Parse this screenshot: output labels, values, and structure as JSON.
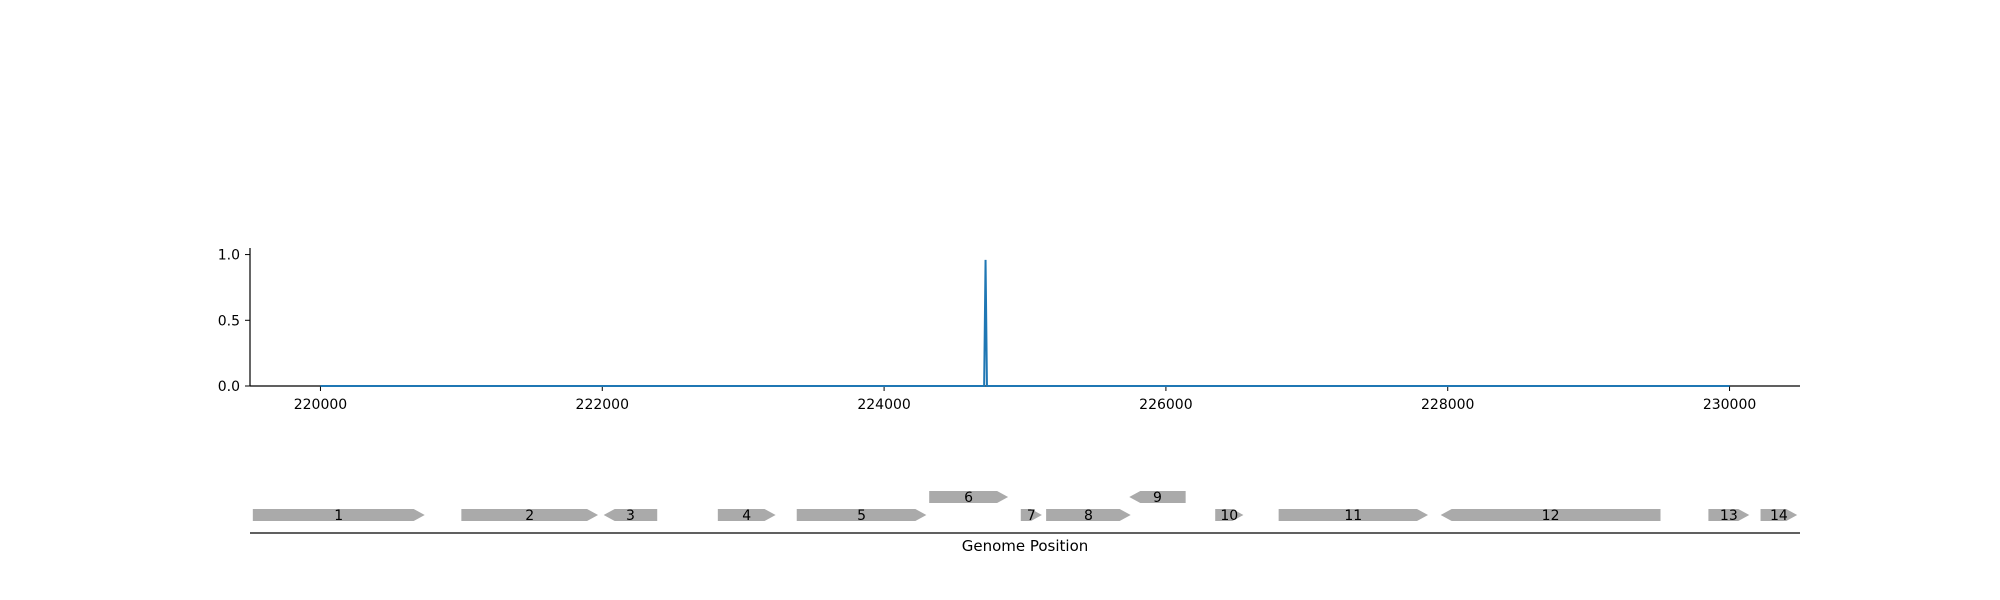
{
  "chart_data": [
    {
      "type": "line",
      "title": "",
      "xlabel": "",
      "ylabel": "",
      "xlim": [
        219500,
        230500
      ],
      "ylim": [
        0,
        1.05
      ],
      "x_ticks": [
        220000,
        222000,
        224000,
        226000,
        228000,
        230000
      ],
      "x_tick_labels": [
        "220000",
        "222000",
        "224000",
        "226000",
        "228000",
        "230000"
      ],
      "y_ticks": [
        0.0,
        0.5,
        1.0
      ],
      "y_tick_labels": [
        "0.0",
        "0.5",
        "1.0"
      ],
      "grid": false,
      "line_color": "#1f77b4",
      "series": [
        {
          "x": [
            220000,
            224710,
            224720,
            224730,
            230000
          ],
          "y": [
            0,
            0,
            0.96,
            0,
            0
          ]
        }
      ]
    },
    {
      "type": "gene-track",
      "xlabel": "Genome Position",
      "xlim": [
        219500,
        230500
      ],
      "gene_color": "#aaaaaa",
      "genes": [
        {
          "label": "1",
          "start": 219520,
          "end": 220740,
          "strand": "+",
          "row": 0
        },
        {
          "label": "2",
          "start": 221000,
          "end": 221970,
          "strand": "+",
          "row": 0
        },
        {
          "label": "3",
          "start": 222010,
          "end": 222390,
          "strand": "-",
          "row": 0
        },
        {
          "label": "4",
          "start": 222820,
          "end": 223230,
          "strand": "+",
          "row": 0
        },
        {
          "label": "5",
          "start": 223380,
          "end": 224300,
          "strand": "+",
          "row": 0
        },
        {
          "label": "6",
          "start": 224320,
          "end": 224880,
          "strand": "+",
          "row": 1
        },
        {
          "label": "7",
          "start": 224970,
          "end": 225120,
          "strand": "+",
          "row": 0
        },
        {
          "label": "8",
          "start": 225150,
          "end": 225750,
          "strand": "+",
          "row": 0
        },
        {
          "label": "9",
          "start": 225740,
          "end": 226140,
          "strand": "-",
          "row": 1
        },
        {
          "label": "10",
          "start": 226350,
          "end": 226550,
          "strand": "+",
          "row": 0
        },
        {
          "label": "11",
          "start": 226800,
          "end": 227860,
          "strand": "+",
          "row": 0
        },
        {
          "label": "12",
          "start": 227950,
          "end": 229510,
          "strand": "-",
          "row": 0
        },
        {
          "label": "13",
          "start": 229850,
          "end": 230140,
          "strand": "+",
          "row": 0
        },
        {
          "label": "14",
          "start": 230220,
          "end": 230480,
          "strand": "+",
          "row": 0
        }
      ]
    }
  ]
}
